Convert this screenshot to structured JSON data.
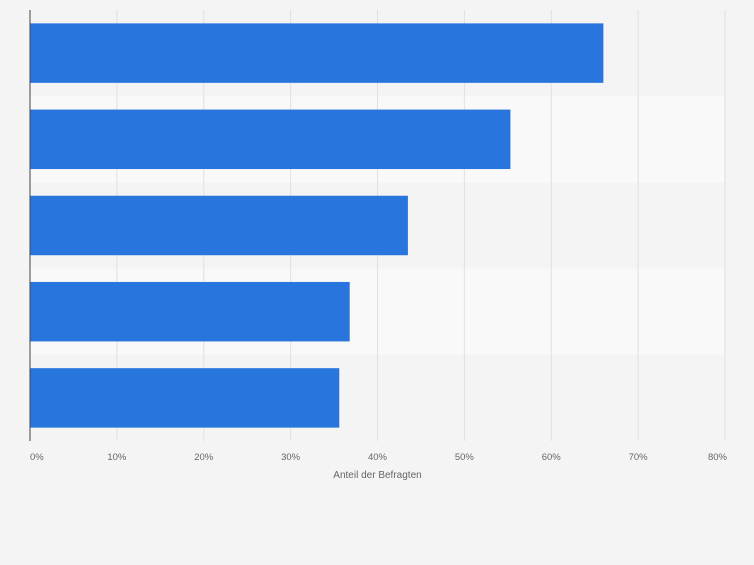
{
  "chart_data": {
    "type": "bar",
    "orientation": "horizontal",
    "title": "",
    "xlabel": "Anteil der Befragten",
    "ylabel": "",
    "categories": [
      "",
      "",
      "",
      "",
      ""
    ],
    "values": [
      66,
      55.3,
      43.5,
      36.8,
      35.6
    ],
    "xlim": [
      0,
      80
    ],
    "xticks": [
      0,
      10,
      20,
      30,
      40,
      50,
      60,
      70,
      80
    ],
    "tick_suffix": "%",
    "grid": true,
    "legend": "none",
    "colors": {
      "bar": "#2876dd",
      "band_odd": "#f4f4f4",
      "band_even": "#f9f9f9",
      "grid": "#e0e0e0",
      "axis": "#444444",
      "tick_text": "#666666"
    }
  }
}
